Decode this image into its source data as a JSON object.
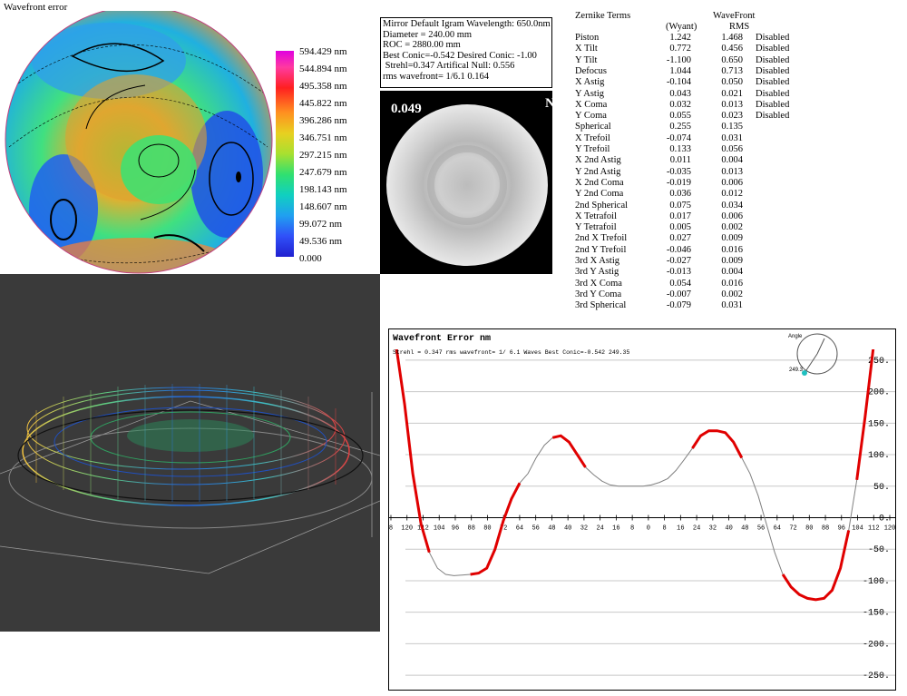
{
  "wavefront_map": {
    "title": "Wavefront error",
    "legend": [
      "594.429 nm",
      "544.894 nm",
      "495.358 nm",
      "445.822 nm",
      "396.286 nm",
      "346.751 nm",
      "297.215 nm",
      "247.679 nm",
      "198.143 nm",
      "148.607 nm",
      "99.072 nm",
      "49.536 nm",
      "0.000"
    ]
  },
  "mirror_info": {
    "lines": [
      "Mirror Default Igram Wavelength: 650.0nm",
      "Diameter = 240.00 mm",
      "ROC = 2880.00 mm",
      "Best Conic=-0.542 Desired Conic: -1.00",
      " Strehl=0.347 Artifical Null: 0.556",
      "rms wavefront= 1/6.1  0.164"
    ]
  },
  "igram": {
    "left_label": "0.049",
    "right_label": "Nu"
  },
  "zernike": {
    "title": "Zernike Terms",
    "col_wyant": "(Wyant)",
    "col_wavefront": "WaveFront",
    "col_rms": "RMS",
    "terms": [
      {
        "name": "Piston",
        "wyant": "1.242",
        "rms": "1.468",
        "status": "Disabled"
      },
      {
        "name": "X Tilt",
        "wyant": "0.772",
        "rms": "0.456",
        "status": "Disabled"
      },
      {
        "name": "Y Tilt",
        "wyant": "-1.100",
        "rms": "0.650",
        "status": "Disabled"
      },
      {
        "name": "Defocus",
        "wyant": "1.044",
        "rms": "0.713",
        "status": "Disabled"
      },
      {
        "name": "X Astig",
        "wyant": "-0.104",
        "rms": "0.050",
        "status": "Disabled"
      },
      {
        "name": "Y Astig",
        "wyant": "0.043",
        "rms": "0.021",
        "status": "Disabled"
      },
      {
        "name": "X Coma",
        "wyant": "0.032",
        "rms": "0.013",
        "status": "Disabled"
      },
      {
        "name": "Y Coma",
        "wyant": "0.055",
        "rms": "0.023",
        "status": "Disabled"
      },
      {
        "name": "Spherical",
        "wyant": "0.255",
        "rms": "0.135",
        "status": ""
      },
      {
        "name": "X Trefoil",
        "wyant": "-0.074",
        "rms": "0.031",
        "status": ""
      },
      {
        "name": "Y Trefoil",
        "wyant": "0.133",
        "rms": "0.056",
        "status": ""
      },
      {
        "name": "X 2nd Astig",
        "wyant": "0.011",
        "rms": "0.004",
        "status": ""
      },
      {
        "name": "Y 2nd Astig",
        "wyant": "-0.035",
        "rms": "0.013",
        "status": ""
      },
      {
        "name": "X 2nd Coma",
        "wyant": "-0.019",
        "rms": "0.006",
        "status": ""
      },
      {
        "name": "Y 2nd Coma",
        "wyant": "0.036",
        "rms": "0.012",
        "status": ""
      },
      {
        "name": "2nd Spherical",
        "wyant": "0.075",
        "rms": "0.034",
        "status": ""
      },
      {
        "name": "X Tetrafoil",
        "wyant": "0.017",
        "rms": "0.006",
        "status": ""
      },
      {
        "name": "Y Tetrafoil",
        "wyant": "0.005",
        "rms": "0.002",
        "status": ""
      },
      {
        "name": "2nd X Trefoil",
        "wyant": "0.027",
        "rms": "0.009",
        "status": ""
      },
      {
        "name": "2nd Y Trefoil",
        "wyant": "-0.046",
        "rms": "0.016",
        "status": ""
      },
      {
        "name": "3rd X Astig",
        "wyant": "-0.027",
        "rms": "0.009",
        "status": ""
      },
      {
        "name": "3rd Y Astig",
        "wyant": "-0.013",
        "rms": "0.004",
        "status": ""
      },
      {
        "name": "3rd X Coma",
        "wyant": "0.054",
        "rms": "0.016",
        "status": ""
      },
      {
        "name": "3rd Y Coma",
        "wyant": "-0.007",
        "rms": "0.002",
        "status": ""
      },
      {
        "name": "3rd Spherical",
        "wyant": "-0.079",
        "rms": "0.031",
        "status": ""
      }
    ]
  },
  "profile": {
    "title": "Wavefront Error nm",
    "subtitle": "Strehl = 0.347 rms wavefront= 1/ 6.1 Waves Best Conic=-0.542 249.35",
    "angle_label": "Angle",
    "angle_value": "249.3"
  },
  "chart_data": {
    "type": "line",
    "title": "Wavefront Error nm",
    "subtitle": "Strehl = 0.347 rms wavefront= 1/ 6.1 Waves Best Conic=-0.542 249.35",
    "xlabel": "",
    "ylabel": "",
    "x_tick_labels": [
      "8",
      "120",
      "112",
      "104",
      "96",
      "88",
      "80",
      "72",
      "64",
      "56",
      "48",
      "40",
      "32",
      "24",
      "16",
      "8",
      "0",
      "8",
      "16",
      "24",
      "32",
      "40",
      "48",
      "56",
      "64",
      "72",
      "80",
      "88",
      "96",
      "104",
      "112",
      "120"
    ],
    "y_ticks": [
      250,
      200,
      150,
      100,
      50,
      0,
      -50,
      -100,
      -150,
      -200,
      -250
    ],
    "ylim": [
      -270,
      270
    ],
    "xlim": [
      -120,
      120
    ],
    "grid": true,
    "series": [
      {
        "color_fit": "#808080",
        "color_error": "#e00000",
        "x": [
          -120,
          -116,
          -112,
          -108,
          -104,
          -100,
          -96,
          -92,
          -88,
          -84,
          -80,
          -76,
          -72,
          -68,
          -64,
          -60,
          -56,
          -52,
          -48,
          -44,
          -40,
          -36,
          -32,
          -28,
          -24,
          -20,
          -16,
          -12,
          -8,
          -4,
          0,
          4,
          8,
          12,
          16,
          20,
          24,
          28,
          32,
          36,
          40,
          44,
          48,
          52,
          56,
          60,
          64,
          68,
          72,
          76,
          80,
          84,
          88,
          92,
          96,
          100,
          104,
          108,
          112,
          116,
          120
        ],
        "values": [
          270,
          180,
          70,
          -10,
          -55,
          -80,
          -90,
          -92,
          -91,
          -90,
          -88,
          -80,
          -50,
          -5,
          30,
          55,
          70,
          95,
          115,
          127,
          130,
          120,
          100,
          80,
          68,
          58,
          52,
          50,
          50,
          50,
          50,
          52,
          56,
          62,
          75,
          92,
          110,
          130,
          138,
          138,
          135,
          120,
          95,
          70,
          35,
          -10,
          -55,
          -90,
          -110,
          -122,
          -128,
          -130,
          -128,
          -115,
          -80,
          -20,
          60,
          160,
          270,
          270,
          270
        ]
      }
    ]
  }
}
